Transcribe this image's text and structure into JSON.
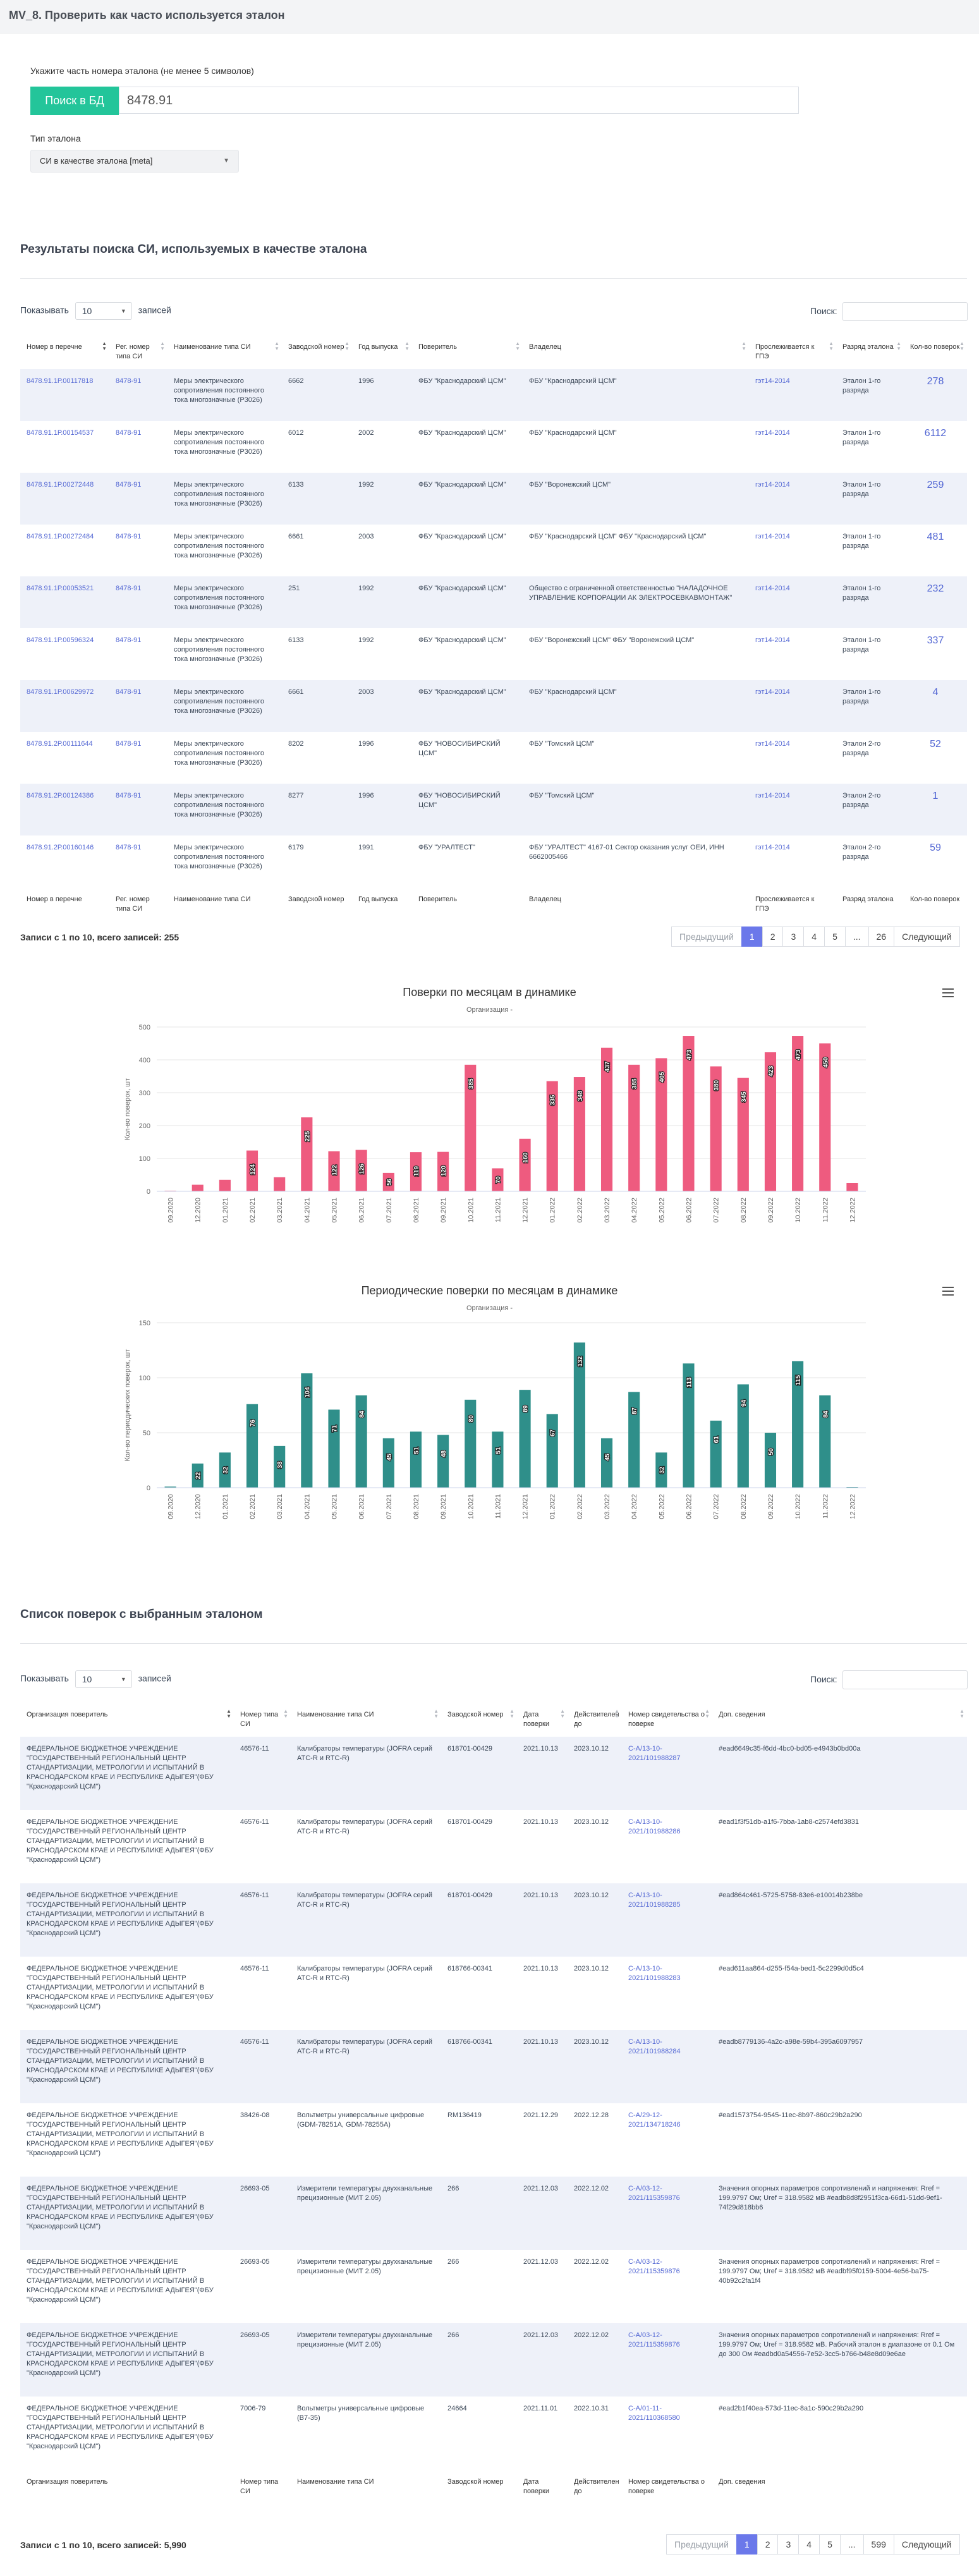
{
  "page_title": "MV_8. Проверить как часто используется эталон",
  "search": {
    "label": "Укажите часть номера эталона (не менее 5 символов)",
    "button": "Поиск в БД",
    "value": "8478.91"
  },
  "etalon_type": {
    "label": "Тип эталона",
    "value": "СИ в качестве эталона [meta]"
  },
  "results": {
    "heading": "Результаты поиска СИ, используемых в качестве эталона",
    "show_prefix": "Показывать",
    "show_value": "10",
    "show_suffix": "записей",
    "search_label": "Поиск:",
    "columns": [
      "Номер в перечне",
      "Рег. номер типа СИ",
      "Наименование типа СИ",
      "Заводской номер",
      "Год выпуска",
      "Поверитель",
      "Владелец",
      "Прослеживается к ГПЭ",
      "Разряд эталона",
      "Кол-во поверок"
    ],
    "footer_columns": [
      "Номер в перечне",
      "Рег. номер типа СИ",
      "Наименование типа СИ",
      "Заводской номер",
      "Год выпуска",
      "Поверитель",
      "Владелец",
      "Прослеживается к ГПЭ",
      "Разряд эталона",
      "Кол-во поверок"
    ],
    "rows": [
      {
        "num": "8478.91.1Р.00117818",
        "reg": "8478-91",
        "name": "Меры электрического сопротивления постоянного тока многозначные (Р3026)",
        "serial": "6662",
        "year": "1996",
        "verifier": "ФБУ \"Краснодарский ЦСМ\"",
        "owner": "ФБУ \"Краснодарский ЦСМ\"",
        "gpe": "гэт14-2014",
        "rank": "Эталон 1-го разряда",
        "count": "278"
      },
      {
        "num": "8478.91.1Р.00154537",
        "reg": "8478-91",
        "name": "Меры электрического сопротивления постоянного тока многозначные (Р3026)",
        "serial": "6012",
        "year": "2002",
        "verifier": "ФБУ \"Краснодарский ЦСМ\"",
        "owner": "ФБУ \"Краснодарский ЦСМ\"",
        "gpe": "гэт14-2014",
        "rank": "Эталон 1-го разряда",
        "count": "6112"
      },
      {
        "num": "8478.91.1Р.00272448",
        "reg": "8478-91",
        "name": "Меры электрического сопротивления постоянного тока многозначные (Р3026)",
        "serial": "6133",
        "year": "1992",
        "verifier": "ФБУ \"Краснодарский ЦСМ\"",
        "owner": "ФБУ \"Воронежский ЦСМ\"",
        "gpe": "гэт14-2014",
        "rank": "Эталон 1-го разряда",
        "count": "259"
      },
      {
        "num": "8478.91.1Р.00272484",
        "reg": "8478-91",
        "name": "Меры электрического сопротивления постоянного тока многозначные (Р3026)",
        "serial": "6661",
        "year": "2003",
        "verifier": "ФБУ \"Краснодарский ЦСМ\"",
        "owner": "ФБУ \"Краснодарский ЦСМ\" ФБУ \"Краснодарский ЦСМ\"",
        "gpe": "гэт14-2014",
        "rank": "Эталон 1-го разряда",
        "count": "481"
      },
      {
        "num": "8478.91.1Р.00053521",
        "reg": "8478-91",
        "name": "Меры электрического сопротивления постоянного тока многозначные (Р3026)",
        "serial": "251",
        "year": "1992",
        "verifier": "ФБУ \"Краснодарский ЦСМ\"",
        "owner": "Общество с ограниченной ответственностью \"НАЛАДОЧНОЕ УПРАВЛЕНИЕ КОРПОРАЦИИ АК ЭЛЕКТРОСЕВКАВМОНТАЖ\"",
        "gpe": "гэт14-2014",
        "rank": "Эталон 1-го разряда",
        "count": "232"
      },
      {
        "num": "8478.91.1Р.00596324",
        "reg": "8478-91",
        "name": "Меры электрического сопротивления постоянного тока многозначные (Р3026)",
        "serial": "6133",
        "year": "1992",
        "verifier": "ФБУ \"Краснодарский ЦСМ\"",
        "owner": "ФБУ \"Воронежский ЦСМ\" ФБУ \"Воронежский ЦСМ\"",
        "gpe": "гэт14-2014",
        "rank": "Эталон 1-го разряда",
        "count": "337"
      },
      {
        "num": "8478.91.1Р.00629972",
        "reg": "8478-91",
        "name": "Меры электрического сопротивления постоянного тока многозначные (Р3026)",
        "serial": "6661",
        "year": "2003",
        "verifier": "ФБУ \"Краснодарский ЦСМ\"",
        "owner": "ФБУ \"Краснодарский ЦСМ\"",
        "gpe": "гэт14-2014",
        "rank": "Эталон 1-го разряда",
        "count": "4"
      },
      {
        "num": "8478.91.2Р.00111644",
        "reg": "8478-91",
        "name": "Меры электрического сопротивления постоянного тока многозначные (Р3026)",
        "serial": "8202",
        "year": "1996",
        "verifier": "ФБУ \"НОВОСИБИРСКИЙ ЦСМ\"",
        "owner": "ФБУ \"Томский ЦСМ\"",
        "gpe": "гэт14-2014",
        "rank": "Эталон 2-го разряда",
        "count": "52"
      },
      {
        "num": "8478.91.2Р.00124386",
        "reg": "8478-91",
        "name": "Меры электрического сопротивления постоянного тока многозначные (Р3026)",
        "serial": "8277",
        "year": "1996",
        "verifier": "ФБУ \"НОВОСИБИРСКИЙ ЦСМ\"",
        "owner": "ФБУ \"Томский ЦСМ\"",
        "gpe": "гэт14-2014",
        "rank": "Эталон 2-го разряда",
        "count": "1"
      },
      {
        "num": "8478.91.2Р.00160146",
        "reg": "8478-91",
        "name": "Меры электрического сопротивления постоянного тока многозначные (Р3026)",
        "serial": "6179",
        "year": "1991",
        "verifier": "ФБУ \"УРАЛТЕСТ\"",
        "owner": "ФБУ \"УРАЛТЕСТ\" 4167-01 Сектор оказания услуг ОЕИ, ИНН 6662005466",
        "gpe": "гэт14-2014",
        "rank": "Эталон 2-го разряда",
        "count": "59"
      }
    ],
    "info": "Записи с 1 по 10, всего записей: 255",
    "pager": {
      "prev": "Предыдущий",
      "pages": [
        "1",
        "2",
        "3",
        "4",
        "5",
        "...",
        "26"
      ],
      "next": "Следующий"
    }
  },
  "chart_data": [
    {
      "type": "bar",
      "title": "Поверки по месяцам в динамике",
      "subtitle": "Организация -",
      "xlabel": "",
      "ylabel": "Кол-во поверок, шт",
      "ylim": [
        0,
        500
      ],
      "yticks": [
        0,
        100,
        200,
        300,
        400,
        500
      ],
      "color": "#ee5b7f",
      "grid": true,
      "categories": [
        "09.2020",
        "12.2020",
        "01.2021",
        "02.2021",
        "03.2021",
        "04.2021",
        "05.2021",
        "06.2021",
        "07.2021",
        "08.2021",
        "09.2021",
        "10.2021",
        "11.2021",
        "12.2021",
        "01.2022",
        "02.2022",
        "03.2022",
        "04.2022",
        "05.2022",
        "06.2022",
        "07.2022",
        "08.2022",
        "09.2022",
        "10.2022",
        "11.2022",
        "12.2022"
      ],
      "values": [
        1,
        20,
        35,
        124,
        43,
        225,
        122,
        126,
        56,
        119,
        120,
        385,
        70,
        160,
        335,
        348,
        437,
        385,
        405,
        473,
        380,
        345,
        423,
        473,
        450,
        25
      ],
      "labeled": [
        false,
        false,
        false,
        true,
        false,
        true,
        true,
        true,
        true,
        true,
        true,
        true,
        true,
        true,
        true,
        true,
        true,
        true,
        true,
        true,
        true,
        true,
        true,
        true,
        true,
        false
      ]
    },
    {
      "type": "bar",
      "title": "Периодические поверки по месяцам в динамике",
      "subtitle": "Организация -",
      "xlabel": "",
      "ylabel": "Кол-во периодических поверок, шт",
      "ylim": [
        0,
        150
      ],
      "yticks": [
        0,
        50,
        100,
        150
      ],
      "color": "#2f8f8a",
      "grid": true,
      "categories": [
        "09.2020",
        "12.2020",
        "01.2021",
        "02.2021",
        "03.2021",
        "04.2021",
        "05.2021",
        "06.2021",
        "07.2021",
        "08.2021",
        "09.2021",
        "10.2021",
        "11.2021",
        "12.2021",
        "01.2022",
        "02.2022",
        "03.2022",
        "04.2022",
        "05.2022",
        "06.2022",
        "07.2022",
        "08.2022",
        "09.2022",
        "10.2022",
        "11.2022",
        "12.2022"
      ],
      "values": [
        1,
        22,
        32,
        76,
        38,
        104,
        71,
        84,
        45,
        51,
        48,
        80,
        51,
        89,
        67,
        132,
        45,
        87,
        32,
        113,
        61,
        94,
        50,
        115,
        84,
        0
      ],
      "labeled": [
        false,
        true,
        true,
        true,
        true,
        true,
        true,
        true,
        true,
        true,
        true,
        true,
        true,
        true,
        true,
        true,
        true,
        true,
        true,
        true,
        true,
        true,
        true,
        true,
        true,
        false
      ]
    }
  ],
  "verifications": {
    "heading": "Список поверок с выбранным эталоном",
    "show_prefix": "Показывать",
    "show_value": "10",
    "show_suffix": "записей",
    "search_label": "Поиск:",
    "columns": [
      "Организация поверитель",
      "Номер типа СИ",
      "Наименование типа СИ",
      "Заводской номер",
      "Дата поверки",
      "Действителен до",
      "Номер свидетельства о поверке",
      "Доп. сведения"
    ],
    "footer_columns": [
      "Организация поверитель",
      "Номер типа СИ",
      "Наименование типа СИ",
      "Заводской номер",
      "Дата поверки",
      "Действителен до",
      "Номер свидетельства о поверке",
      "Доп. сведения"
    ],
    "rows": [
      {
        "org": "ФЕДЕРАЛЬНОЕ БЮДЖЕТНОЕ УЧРЕЖДЕНИЕ \"ГОСУДАРСТВЕННЫЙ РЕГИОНАЛЬНЫЙ ЦЕНТР СТАНДАРТИЗАЦИИ, МЕТРОЛОГИИ И ИСПЫТАНИЙ В КРАСНОДАРСКОМ КРАЕ И РЕСПУБЛИКЕ АДЫГЕЯ\"(ФБУ \"Краснодарский ЦСМ\")",
        "type": "46576-11",
        "name": "Калибраторы температуры (JOFRA серий ATC-R и RTC-R)",
        "serial": "618701-00429",
        "date": "2021.10.13",
        "valid": "2023.10.12",
        "cert": "С-А/13-10-2021/101988287",
        "extra": "#ead6649c35-f6dd-4bc0-bd05-e4943b0bd00a"
      },
      {
        "org": "ФЕДЕРАЛЬНОЕ БЮДЖЕТНОЕ УЧРЕЖДЕНИЕ \"ГОСУДАРСТВЕННЫЙ РЕГИОНАЛЬНЫЙ ЦЕНТР СТАНДАРТИЗАЦИИ, МЕТРОЛОГИИ И ИСПЫТАНИЙ В КРАСНОДАРСКОМ КРАЕ И РЕСПУБЛИКЕ АДЫГЕЯ\"(ФБУ \"Краснодарский ЦСМ\")",
        "type": "46576-11",
        "name": "Калибраторы температуры (JOFRA серий ATC-R и RTC-R)",
        "serial": "618701-00429",
        "date": "2021.10.13",
        "valid": "2023.10.12",
        "cert": "С-А/13-10-2021/101988286",
        "extra": "#ead1f3f51db-a1f6-7bba-1ab8-c2574efd3831"
      },
      {
        "org": "ФЕДЕРАЛЬНОЕ БЮДЖЕТНОЕ УЧРЕЖДЕНИЕ \"ГОСУДАРСТВЕННЫЙ РЕГИОНАЛЬНЫЙ ЦЕНТР СТАНДАРТИЗАЦИИ, МЕТРОЛОГИИ И ИСПЫТАНИЙ В КРАСНОДАРСКОМ КРАЕ И РЕСПУБЛИКЕ АДЫГЕЯ\"(ФБУ \"Краснодарский ЦСМ\")",
        "type": "46576-11",
        "name": "Калибраторы температуры (JOFRA серий ATC-R и RTC-R)",
        "serial": "618701-00429",
        "date": "2021.10.13",
        "valid": "2023.10.12",
        "cert": "С-А/13-10-2021/101988285",
        "extra": "#ead864c461-5725-5758-83e6-e10014b238be"
      },
      {
        "org": "ФЕДЕРАЛЬНОЕ БЮДЖЕТНОЕ УЧРЕЖДЕНИЕ \"ГОСУДАРСТВЕННЫЙ РЕГИОНАЛЬНЫЙ ЦЕНТР СТАНДАРТИЗАЦИИ, МЕТРОЛОГИИ И ИСПЫТАНИЙ В КРАСНОДАРСКОМ КРАЕ И РЕСПУБЛИКЕ АДЫГЕЯ\"(ФБУ \"Краснодарский ЦСМ\")",
        "type": "46576-11",
        "name": "Калибраторы температуры (JOFRA серий ATC-R и RTC-R)",
        "serial": "618766-00341",
        "date": "2021.10.13",
        "valid": "2023.10.12",
        "cert": "С-А/13-10-2021/101988283",
        "extra": "#ead611aa864-d255-f54a-bed1-5c2299d0d5c4"
      },
      {
        "org": "ФЕДЕРАЛЬНОЕ БЮДЖЕТНОЕ УЧРЕЖДЕНИЕ \"ГОСУДАРСТВЕННЫЙ РЕГИОНАЛЬНЫЙ ЦЕНТР СТАНДАРТИЗАЦИИ, МЕТРОЛОГИИ И ИСПЫТАНИЙ В КРАСНОДАРСКОМ КРАЕ И РЕСПУБЛИКЕ АДЫГЕЯ\"(ФБУ \"Краснодарский ЦСМ\")",
        "type": "46576-11",
        "name": "Калибраторы температуры (JOFRA серий ATC-R и RTC-R)",
        "serial": "618766-00341",
        "date": "2021.10.13",
        "valid": "2023.10.12",
        "cert": "С-А/13-10-2021/101988284",
        "extra": "#eadb8779136-4a2c-a98e-59b4-395a6097957"
      },
      {
        "org": "ФЕДЕРАЛЬНОЕ БЮДЖЕТНОЕ УЧРЕЖДЕНИЕ \"ГОСУДАРСТВЕННЫЙ РЕГИОНАЛЬНЫЙ ЦЕНТР СТАНДАРТИЗАЦИИ, МЕТРОЛОГИИ И ИСПЫТАНИЙ В КРАСНОДАРСКОМ КРАЕ И РЕСПУБЛИКЕ АДЫГЕЯ\"(ФБУ \"Краснодарский ЦСМ\")",
        "type": "38426-08",
        "name": "Вольтметры универсальные цифровые (GDM-78251A, GDM-78255A)",
        "serial": "RM136419",
        "date": "2021.12.29",
        "valid": "2022.12.28",
        "cert": "С-А/29-12-2021/134718246",
        "extra": "#ead1573754-9545-11ec-8b97-860c29b2a290"
      },
      {
        "org": "ФЕДЕРАЛЬНОЕ БЮДЖЕТНОЕ УЧРЕЖДЕНИЕ \"ГОСУДАРСТВЕННЫЙ РЕГИОНАЛЬНЫЙ ЦЕНТР СТАНДАРТИЗАЦИИ, МЕТРОЛОГИИ И ИСПЫТАНИЙ В КРАСНОДАРСКОМ КРАЕ И РЕСПУБЛИКЕ АДЫГЕЯ\"(ФБУ \"Краснодарский ЦСМ\")",
        "type": "26693-05",
        "name": "Измерители температуры двухканальные прецизионные (МИТ 2.05)",
        "serial": "266",
        "date": "2021.12.03",
        "valid": "2022.12.02",
        "cert": "С-А/03-12-2021/115359876",
        "extra": "Значения опорных параметров сопротивлений и напряжения: Rref = 199.9797 Ом; Uref = 318.9582 мВ #eadb8d8f2951f3ca-66d1-51dd-9ef1-74f29d818bb6"
      },
      {
        "org": "ФЕДЕРАЛЬНОЕ БЮДЖЕТНОЕ УЧРЕЖДЕНИЕ \"ГОСУДАРСТВЕННЫЙ РЕГИОНАЛЬНЫЙ ЦЕНТР СТАНДАРТИЗАЦИИ, МЕТРОЛОГИИ И ИСПЫТАНИЙ В КРАСНОДАРСКОМ КРАЕ И РЕСПУБЛИКЕ АДЫГЕЯ\"(ФБУ \"Краснодарский ЦСМ\")",
        "type": "26693-05",
        "name": "Измерители температуры двухканальные прецизионные (МИТ 2.05)",
        "serial": "266",
        "date": "2021.12.03",
        "valid": "2022.12.02",
        "cert": "С-А/03-12-2021/115359876",
        "extra": "Значения опорных параметров сопротивлений и напряжения: Rref = 199.9797 Ом; Uref = 318.9582 мВ #eadbf95f0159-5004-4e56-ba75-40b92c2fa1f4"
      },
      {
        "org": "ФЕДЕРАЛЬНОЕ БЮДЖЕТНОЕ УЧРЕЖДЕНИЕ \"ГОСУДАРСТВЕННЫЙ РЕГИОНАЛЬНЫЙ ЦЕНТР СТАНДАРТИЗАЦИИ, МЕТРОЛОГИИ И ИСПЫТАНИЙ В КРАСНОДАРСКОМ КРАЕ И РЕСПУБЛИКЕ АДЫГЕЯ\"(ФБУ \"Краснодарский ЦСМ\")",
        "type": "26693-05",
        "name": "Измерители температуры двухканальные прецизионные (МИТ 2.05)",
        "serial": "266",
        "date": "2021.12.03",
        "valid": "2022.12.02",
        "cert": "С-А/03-12-2021/115359876",
        "extra": "Значения опорных параметров сопротивлений и напряжения: Rref = 199.9797 Ом; Uref = 318.9582 мВ. Рабочий эталон в диапазоне от 0.1 Ом до 300 Ом #eadbd0a54556-7e52-3cc5-b766-b48e8d09e6ae"
      },
      {
        "org": "ФЕДЕРАЛЬНОЕ БЮДЖЕТНОЕ УЧРЕЖДЕНИЕ \"ГОСУДАРСТВЕННЫЙ РЕГИОНАЛЬНЫЙ ЦЕНТР СТАНДАРТИЗАЦИИ, МЕТРОЛОГИИ И ИСПЫТАНИЙ В КРАСНОДАРСКОМ КРАЕ И РЕСПУБЛИКЕ АДЫГЕЯ\"(ФБУ \"Краснодарский ЦСМ\")",
        "type": "7006-79",
        "name": "Вольтметры универсальные цифровые (В7-35)",
        "serial": "24664",
        "date": "2021.11.01",
        "valid": "2022.10.31",
        "cert": "С-А/01-11-2021/110368580",
        "extra": "#ead2b1f40ea-573d-11ec-8a1c-590c29b2a290"
      }
    ],
    "info": "Записи с 1 по 10, всего записей: 5,990",
    "pager": {
      "prev": "Предыдущий",
      "pages": [
        "1",
        "2",
        "3",
        "4",
        "5",
        "...",
        "599"
      ],
      "next": "Следующий"
    }
  }
}
